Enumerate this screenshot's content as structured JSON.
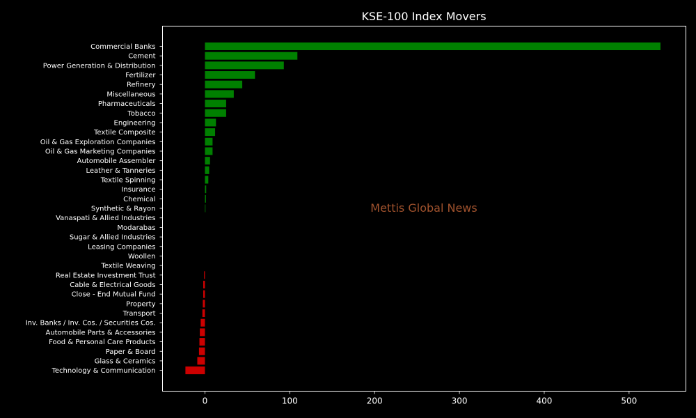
{
  "chart_data": {
    "type": "bar",
    "orientation": "horizontal",
    "title": "KSE-100 Index Movers",
    "watermark": "Mettis Global News",
    "xlabel": "",
    "ylabel": "",
    "xlim": [
      -50,
      567
    ],
    "xticks": [
      0,
      100,
      200,
      300,
      400,
      500
    ],
    "grid": false,
    "background": "#000000",
    "text_color": "#ffffff",
    "watermark_color": "#a0522d",
    "positive_color": "#008000",
    "negative_color": "#cc0000",
    "categories": [
      "Commercial Banks",
      "Cement",
      "Power Generation & Distribution",
      "Fertilizer",
      "Refinery",
      "Miscellaneous",
      "Pharmaceuticals",
      "Tobacco",
      "Engineering",
      "Textile Composite",
      "Oil & Gas Exploration Companies",
      "Oil & Gas Marketing Companies",
      "Automobile Assembler",
      "Leather & Tanneries",
      "Textile Spinning",
      "Insurance",
      "Chemical",
      "Synthetic & Rayon",
      "Vanaspati & Allied Industries",
      "Modarabas",
      "Sugar & Allied Industries",
      "Leasing Companies",
      "Woollen",
      "Textile Weaving",
      "Real Estate Investment Trust",
      "Cable & Electrical Goods",
      "Close - End Mutual Fund",
      "Property",
      "Transport",
      "Inv. Banks / Inv. Cos. / Securities Cos.",
      "Automobile Parts & Accessories",
      "Food & Personal Care Products",
      "Paper & Board",
      "Glass & Ceramics",
      "Technology & Communication"
    ],
    "values": [
      537,
      109,
      93,
      59,
      44,
      34,
      25,
      25,
      13,
      12,
      9,
      9,
      6,
      5,
      4,
      1.5,
      1.2,
      0.6,
      0,
      0,
      0,
      0,
      0,
      0,
      -1,
      -2,
      -2,
      -2.5,
      -3,
      -5,
      -6,
      -6.5,
      -7,
      -9,
      -23
    ]
  }
}
